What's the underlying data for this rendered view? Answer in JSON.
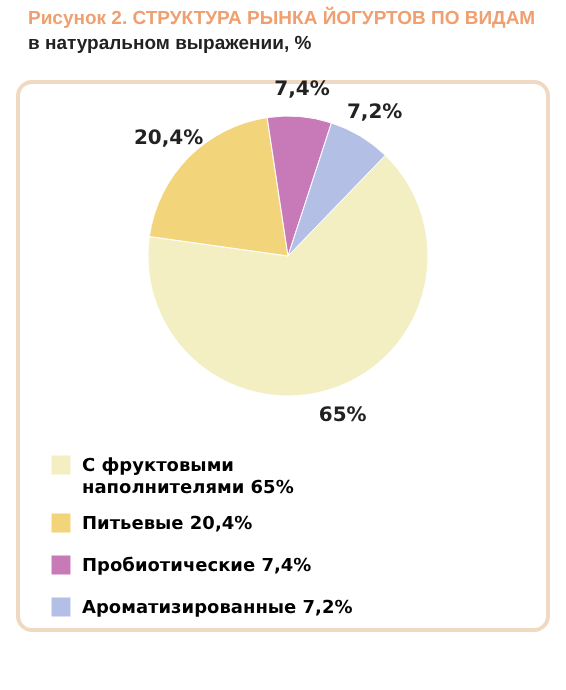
{
  "chart_data": {
    "type": "pie",
    "title": "Рисунок 2. СТРУКТУРА РЫНКА ЙОГУРТОВ ПО ВИДАМ",
    "subtitle": "в натуральном выражении, %",
    "categories": [
      "С фруктовыми наполнителями",
      "Питьевые",
      "Пробиотические",
      "Ароматизированные"
    ],
    "values": [
      65,
      20.4,
      7.4,
      7.2
    ],
    "colors": [
      "#f3efc3",
      "#f2d47a",
      "#c87ab8",
      "#b4bfe6"
    ],
    "value_labels": [
      "65%",
      "20,4%",
      "7,4%",
      "7,2%"
    ],
    "legend": "bottom"
  }
}
